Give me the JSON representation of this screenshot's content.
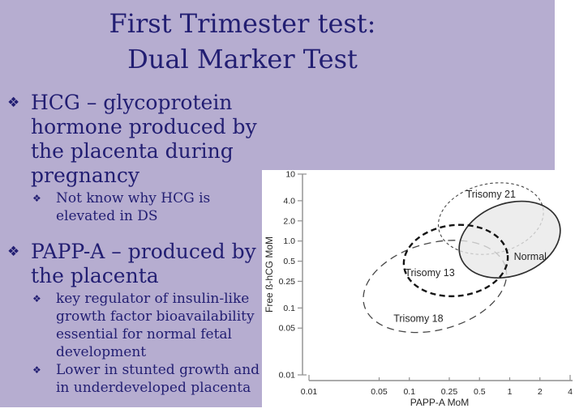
{
  "theme": {
    "slide_bg": "#b6add0",
    "text_color": "#221e72",
    "page_bg": "#ffffff"
  },
  "slide": {
    "title_line1": "First Trimester test:",
    "title_line2": "Dual Marker Test",
    "bullet_glyph": "❖",
    "bullets": [
      {
        "lines": [
          "HCG – glycoprotein",
          "hormone produced by",
          "the placenta during",
          "pregnancy"
        ],
        "subs": [
          {
            "lines": [
              "Not know why HCG is",
              "elevated in DS"
            ]
          }
        ]
      },
      {
        "lines": [
          "PAPP-A – produced by",
          "the placenta"
        ],
        "subs": [
          {
            "lines": [
              "key regulator of insulin-like",
              "growth factor bioavailability",
              "essential for normal fetal",
              "development"
            ]
          },
          {
            "lines": [
              "Lower in stunted growth and",
              "in underdeveloped placenta"
            ]
          }
        ]
      }
    ]
  },
  "chart_data": {
    "type": "scatter",
    "subtype": "overlapping-ellipse-regions",
    "title": "",
    "xlabel": "PAPP-A MoM",
    "ylabel": "Free ß-hCG MoM",
    "x_scale": "log",
    "y_scale": "log",
    "xlim": [
      0.01,
      4
    ],
    "ylim": [
      0.01,
      10
    ],
    "x_ticks": [
      0.01,
      0.05,
      0.1,
      0.25,
      0.5,
      1,
      2,
      4
    ],
    "x_tick_labels": [
      "0.01",
      "0.05",
      "0.1",
      "0.25",
      "0.5",
      "1",
      "2",
      "4"
    ],
    "y_ticks": [
      10,
      4,
      2,
      1,
      0.5,
      0.25,
      0.1,
      0.05,
      0.01
    ],
    "y_tick_labels": [
      "10",
      "4.0",
      "2.0",
      "1.0",
      "0.5",
      "0.25",
      "0.1",
      "0.05",
      "0.01"
    ],
    "grid": false,
    "axis_color": "#8f8f8f",
    "text_color": "#262626",
    "regions": [
      {
        "name": "Trisomy 21",
        "center_x": 0.65,
        "center_y": 2.16,
        "rx_decades": 0.53,
        "ry_decades": 0.52,
        "rotation_deg": -12,
        "line_style": "fine-dashed",
        "stroke": "#474747",
        "fill": null,
        "fill_opacity": 0,
        "label": "Trisomy 21",
        "label_x": 0.65,
        "label_y": 5.0
      },
      {
        "name": "Trisomy 18",
        "center_x": 0.18,
        "center_y": 0.21,
        "rx_decades": 0.73,
        "ry_decades": 0.65,
        "rotation_deg": -15,
        "line_style": "long-dashed",
        "stroke": "#474747",
        "fill": null,
        "fill_opacity": 0,
        "label": "Trisomy 18",
        "label_x": 0.123,
        "label_y": 0.069
      },
      {
        "name": "Normal",
        "center_x": 1.0,
        "center_y": 1.05,
        "rx_decades": 0.52,
        "ry_decades": 0.54,
        "rotation_deg": -20,
        "line_style": "solid",
        "stroke": "#2f2f2f",
        "fill": "#e8e8e8",
        "fill_opacity": 0.78,
        "label": "Normal",
        "label_x": 1.6,
        "label_y": 0.585
      },
      {
        "name": "Trisomy 13",
        "center_x": 0.29,
        "center_y": 0.51,
        "rx_decades": 0.52,
        "ry_decades": 0.53,
        "rotation_deg": -6,
        "line_style": "bold-dashed",
        "stroke": "#141414",
        "fill": null,
        "fill_opacity": 0,
        "label": "Trisomy 13",
        "label_x": 0.16,
        "label_y": 0.335
      }
    ]
  }
}
